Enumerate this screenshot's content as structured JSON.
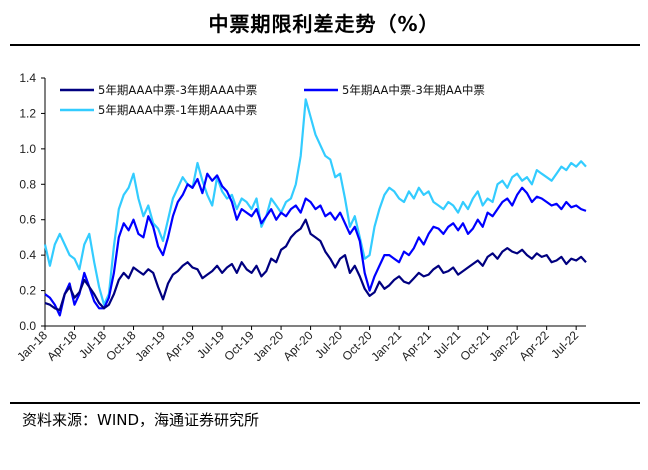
{
  "header": {
    "title": "中票期限利差走势（%）"
  },
  "footer": {
    "source": "资料来源：WIND，海通证券研究所"
  },
  "chart_data": {
    "type": "line",
    "title": "中票期限利差走势（%）",
    "xlabel": "",
    "ylabel": "",
    "ylim": [
      0,
      1.4
    ],
    "yticks": [
      "0.0",
      "0.2",
      "0.4",
      "0.6",
      "0.8",
      "1.0",
      "1.2",
      "1.4"
    ],
    "xticks": [
      "Jan-18",
      "Apr-18",
      "Jul-18",
      "Oct-18",
      "Jan-19",
      "Apr-19",
      "Jul-19",
      "Oct-19",
      "Jan-20",
      "Apr-20",
      "Jul-20",
      "Oct-20",
      "Jan-21",
      "Apr-21",
      "Jul-21",
      "Oct-21",
      "Jan-22",
      "Apr-22",
      "Jul-22"
    ],
    "x_unit": "months since Jan-2018",
    "series": [
      {
        "name": "5年期AAA中票-3年期AAA中票",
        "color": "#000080",
        "x": [
          0,
          0.5,
          1,
          1.5,
          2,
          2.5,
          3,
          3.5,
          4,
          4.5,
          5,
          5.5,
          6,
          6.5,
          7,
          7.5,
          8,
          8.5,
          9,
          9.5,
          10,
          10.5,
          11,
          11.5,
          12,
          12.5,
          13,
          13.5,
          14,
          14.5,
          15,
          15.5,
          16,
          16.5,
          17,
          17.5,
          18,
          18.5,
          19,
          19.5,
          20,
          20.5,
          21,
          21.5,
          22,
          22.5,
          23,
          23.5,
          24,
          24.5,
          25,
          25.5,
          26,
          26.5,
          27,
          27.5,
          28,
          28.5,
          29,
          29.5,
          30,
          30.5,
          31,
          31.5,
          32,
          32.5,
          33,
          33.5,
          34,
          34.5,
          35,
          35.5,
          36,
          36.5,
          37,
          37.5,
          38,
          38.5,
          39,
          39.5,
          40,
          40.5,
          41,
          41.5,
          42,
          42.5,
          43,
          43.5,
          44,
          44.5,
          45,
          45.5,
          46,
          46.5,
          47,
          47.5,
          48,
          48.5,
          49,
          49.5,
          50,
          50.5,
          51,
          51.5,
          52,
          52.5,
          53,
          53.5,
          54,
          54.5,
          55
        ],
        "values": [
          0.13,
          0.12,
          0.1,
          0.09,
          0.18,
          0.22,
          0.16,
          0.19,
          0.26,
          0.22,
          0.18,
          0.13,
          0.1,
          0.12,
          0.18,
          0.26,
          0.3,
          0.27,
          0.33,
          0.31,
          0.29,
          0.32,
          0.3,
          0.22,
          0.15,
          0.24,
          0.29,
          0.31,
          0.34,
          0.36,
          0.33,
          0.32,
          0.27,
          0.29,
          0.31,
          0.34,
          0.3,
          0.33,
          0.35,
          0.3,
          0.36,
          0.32,
          0.3,
          0.34,
          0.28,
          0.31,
          0.38,
          0.36,
          0.43,
          0.45,
          0.5,
          0.53,
          0.55,
          0.6,
          0.52,
          0.5,
          0.48,
          0.42,
          0.38,
          0.33,
          0.38,
          0.4,
          0.3,
          0.34,
          0.28,
          0.21,
          0.17,
          0.19,
          0.25,
          0.21,
          0.23,
          0.26,
          0.28,
          0.25,
          0.24,
          0.27,
          0.3,
          0.28,
          0.29,
          0.32,
          0.34,
          0.3,
          0.31,
          0.33,
          0.29,
          0.31,
          0.33,
          0.35,
          0.37,
          0.34,
          0.39,
          0.41,
          0.38,
          0.42,
          0.44,
          0.42,
          0.41,
          0.43,
          0.4,
          0.38,
          0.41,
          0.39,
          0.4,
          0.36,
          0.37,
          0.39,
          0.35,
          0.38,
          0.37,
          0.39,
          0.36
        ]
      },
      {
        "name": "5年期AA中票-3年期AA中票",
        "color": "#0000FF",
        "x": [
          0,
          0.5,
          1,
          1.5,
          2,
          2.5,
          3,
          3.5,
          4,
          4.5,
          5,
          5.5,
          6,
          6.5,
          7,
          7.5,
          8,
          8.5,
          9,
          9.5,
          10,
          10.5,
          11,
          11.5,
          12,
          12.5,
          13,
          13.5,
          14,
          14.5,
          15,
          15.5,
          16,
          16.5,
          17,
          17.5,
          18,
          18.5,
          19,
          19.5,
          20,
          20.5,
          21,
          21.5,
          22,
          22.5,
          23,
          23.5,
          24,
          24.5,
          25,
          25.5,
          26,
          26.5,
          27,
          27.5,
          28,
          28.5,
          29,
          29.5,
          30,
          30.5,
          31,
          31.5,
          32,
          32.5,
          33,
          33.5,
          34,
          34.5,
          35,
          35.5,
          36,
          36.5,
          37,
          37.5,
          38,
          38.5,
          39,
          39.5,
          40,
          40.5,
          41,
          41.5,
          42,
          42.5,
          43,
          43.5,
          44,
          44.5,
          45,
          45.5,
          46,
          46.5,
          47,
          47.5,
          48,
          48.5,
          49,
          49.5,
          50,
          50.5,
          51,
          51.5,
          52,
          52.5,
          53,
          53.5,
          54,
          54.5,
          55
        ],
        "values": [
          0.18,
          0.16,
          0.12,
          0.06,
          0.18,
          0.24,
          0.12,
          0.18,
          0.3,
          0.22,
          0.14,
          0.1,
          0.1,
          0.16,
          0.3,
          0.5,
          0.58,
          0.54,
          0.6,
          0.52,
          0.5,
          0.62,
          0.56,
          0.45,
          0.4,
          0.5,
          0.62,
          0.7,
          0.74,
          0.8,
          0.78,
          0.83,
          0.75,
          0.86,
          0.82,
          0.85,
          0.79,
          0.76,
          0.7,
          0.6,
          0.66,
          0.64,
          0.62,
          0.66,
          0.58,
          0.62,
          0.66,
          0.6,
          0.64,
          0.62,
          0.66,
          0.68,
          0.64,
          0.72,
          0.7,
          0.66,
          0.68,
          0.62,
          0.64,
          0.6,
          0.64,
          0.58,
          0.52,
          0.56,
          0.48,
          0.3,
          0.2,
          0.28,
          0.34,
          0.4,
          0.4,
          0.38,
          0.36,
          0.42,
          0.4,
          0.44,
          0.5,
          0.46,
          0.52,
          0.56,
          0.55,
          0.52,
          0.56,
          0.58,
          0.54,
          0.58,
          0.52,
          0.55,
          0.6,
          0.56,
          0.64,
          0.62,
          0.66,
          0.7,
          0.72,
          0.68,
          0.74,
          0.78,
          0.75,
          0.7,
          0.73,
          0.72,
          0.7,
          0.68,
          0.69,
          0.66,
          0.7,
          0.67,
          0.68,
          0.66,
          0.65
        ]
      },
      {
        "name": "5年期AAA中票-1年期AAA中票",
        "color": "#33CCFF",
        "x": [
          0,
          0.5,
          1,
          1.5,
          2,
          2.5,
          3,
          3.5,
          4,
          4.5,
          5,
          5.5,
          6,
          6.5,
          7,
          7.5,
          8,
          8.5,
          9,
          9.5,
          10,
          10.5,
          11,
          11.5,
          12,
          12.5,
          13,
          13.5,
          14,
          14.5,
          15,
          15.5,
          16,
          16.5,
          17,
          17.5,
          18,
          18.5,
          19,
          19.5,
          20,
          20.5,
          21,
          21.5,
          22,
          22.5,
          23,
          23.5,
          24,
          24.5,
          25,
          25.5,
          26,
          26.5,
          27,
          27.5,
          28,
          28.5,
          29,
          29.5,
          30,
          30.5,
          31,
          31.5,
          32,
          32.5,
          33,
          33.5,
          34,
          34.5,
          35,
          35.5,
          36,
          36.5,
          37,
          37.5,
          38,
          38.5,
          39,
          39.5,
          40,
          40.5,
          41,
          41.5,
          42,
          42.5,
          43,
          43.5,
          44,
          44.5,
          45,
          45.5,
          46,
          46.5,
          47,
          47.5,
          48,
          48.5,
          49,
          49.5,
          50,
          50.5,
          51,
          51.5,
          52,
          52.5,
          53,
          53.5,
          54,
          54.5,
          55
        ],
        "values": [
          0.46,
          0.34,
          0.46,
          0.52,
          0.46,
          0.4,
          0.38,
          0.32,
          0.46,
          0.52,
          0.36,
          0.22,
          0.12,
          0.18,
          0.45,
          0.66,
          0.74,
          0.78,
          0.86,
          0.72,
          0.62,
          0.68,
          0.58,
          0.55,
          0.48,
          0.6,
          0.72,
          0.78,
          0.84,
          0.8,
          0.78,
          0.92,
          0.82,
          0.74,
          0.68,
          0.84,
          0.76,
          0.72,
          0.74,
          0.66,
          0.72,
          0.7,
          0.66,
          0.72,
          0.56,
          0.62,
          0.72,
          0.68,
          0.64,
          0.7,
          0.72,
          0.8,
          0.96,
          1.28,
          1.18,
          1.08,
          1.02,
          0.96,
          0.94,
          0.84,
          0.86,
          0.72,
          0.56,
          0.62,
          0.5,
          0.38,
          0.4,
          0.56,
          0.66,
          0.74,
          0.78,
          0.76,
          0.72,
          0.7,
          0.76,
          0.72,
          0.78,
          0.74,
          0.76,
          0.7,
          0.68,
          0.66,
          0.7,
          0.68,
          0.64,
          0.7,
          0.66,
          0.72,
          0.76,
          0.68,
          0.72,
          0.7,
          0.8,
          0.82,
          0.78,
          0.84,
          0.86,
          0.82,
          0.84,
          0.8,
          0.88,
          0.86,
          0.84,
          0.82,
          0.86,
          0.9,
          0.88,
          0.92,
          0.9,
          0.93,
          0.9
        ]
      }
    ],
    "legend": "top-left, inside plot",
    "grid": false
  }
}
